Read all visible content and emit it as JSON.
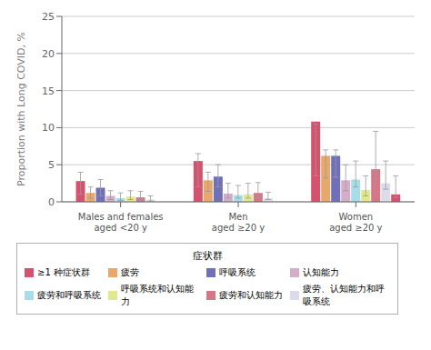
{
  "chart_data": {
    "type": "bar",
    "y_label": "Proportion with Long COVID, %",
    "ylim": [
      0,
      25
    ],
    "yticks": [
      0,
      5,
      10,
      15,
      20,
      25
    ],
    "grid": true,
    "legend": "bottom",
    "legend_title": "症状群",
    "categories": [
      "Males and females\naged <20 y",
      "Men\naged ≥20 y",
      "Women\naged ≥20 y"
    ],
    "series": [
      {
        "name": "≥1 种症状群",
        "color": "#d4526e",
        "values": [
          2.8,
          5.5,
          10.8
        ],
        "error_low": [
          1.0,
          2.0,
          3.5
        ],
        "error_high": [
          4.0,
          6.5,
          10.5
        ]
      },
      {
        "name": "疲劳",
        "color": "#e8a86a",
        "values": [
          1.2,
          2.9,
          6.2
        ],
        "error_low": [
          0.5,
          1.4,
          3.2
        ],
        "error_high": [
          2.0,
          4.0,
          7.0
        ]
      },
      {
        "name": "呼吸系统",
        "color": "#7070b8",
        "values": [
          1.9,
          3.4,
          6.2
        ],
        "error_low": [
          0.8,
          2.0,
          3.3
        ],
        "error_high": [
          3.0,
          5.0,
          7.0
        ]
      },
      {
        "name": "认知能力",
        "color": "#d4aec8",
        "values": [
          0.8,
          1.1,
          2.9
        ],
        "error_low": [
          0.3,
          0.5,
          1.5
        ],
        "error_high": [
          1.5,
          2.5,
          5.0
        ]
      },
      {
        "name": "疲劳和呼吸系统",
        "color": "#a8dce8",
        "values": [
          0.5,
          0.9,
          3.0
        ],
        "error_low": [
          0.2,
          0.5,
          2.0
        ],
        "error_high": [
          1.2,
          2.2,
          5.5
        ]
      },
      {
        "name": "呼吸系统和认知能力",
        "color": "#e0e890",
        "values": [
          0.7,
          1.0,
          1.6
        ],
        "error_low": [
          0.3,
          0.5,
          0.8
        ],
        "error_high": [
          1.5,
          2.5,
          3.5
        ]
      },
      {
        "name": "疲劳和认知能力",
        "color": "#d47888",
        "values": [
          0.6,
          1.2,
          4.4
        ],
        "error_low": [
          0.2,
          0.6,
          3.0
        ],
        "error_high": [
          1.4,
          2.6,
          9.5
        ]
      },
      {
        "name": "疲劳、认知能力和呼吸系统",
        "color": "#dcdce8",
        "values": [
          0.3,
          0.5,
          2.5
        ],
        "error_low": [
          0.1,
          0.3,
          1.7
        ],
        "error_high": [
          0.8,
          1.3,
          5.5
        ]
      },
      {
        "name": "≥1 种症状群",
        "color": "#d4526e",
        "values": [
          null,
          null,
          1.0
        ],
        "error_low": [
          null,
          null,
          0.6
        ],
        "error_high": [
          null,
          null,
          3.5
        ]
      }
    ]
  }
}
